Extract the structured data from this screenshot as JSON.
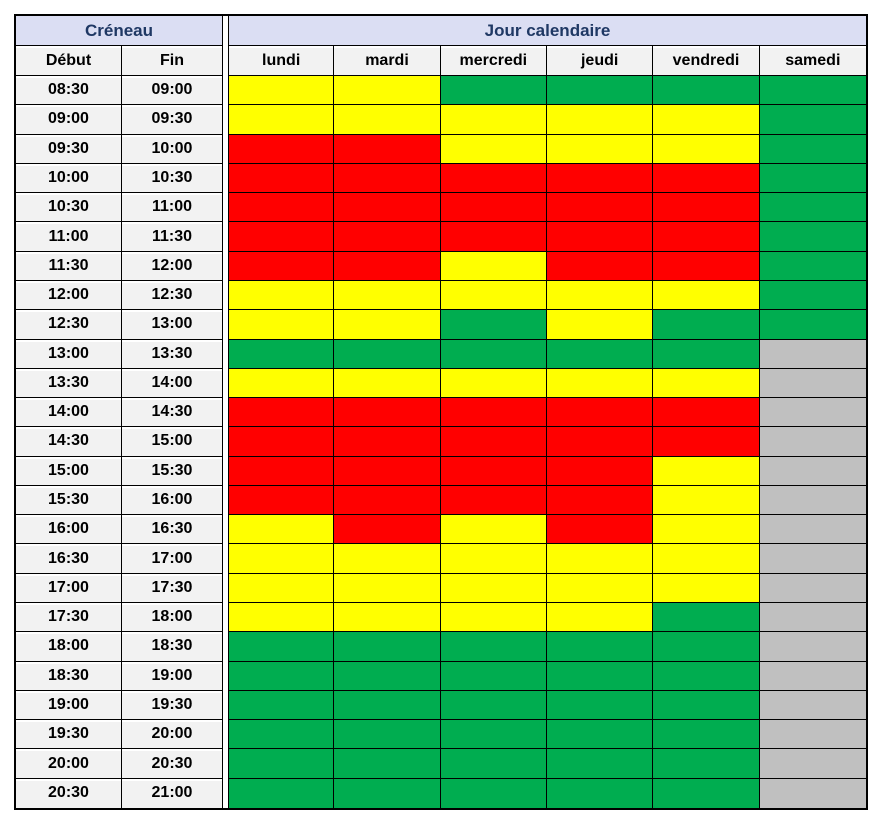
{
  "table": {
    "creneau_label": "Créneau",
    "jour_label": "Jour calendaire",
    "debut_label": "Début",
    "fin_label": "Fin"
  },
  "colors": {
    "green": "#00AD50",
    "yellow": "#FFFF00",
    "red": "#FF0000",
    "gray": "#C0C0C0",
    "header_bg": "#DBDEF3",
    "header_text": "#1F3864",
    "light_bg": "#F2F2F2",
    "border": "#000000"
  },
  "chart_data": {
    "type": "heatmap",
    "title": "",
    "x_categories": [
      "lundi",
      "mardi",
      "mercredi",
      "jeudi",
      "vendredi",
      "samedi"
    ],
    "y_axis_columns": [
      "Début",
      "Fin"
    ],
    "cell_states": [
      "green",
      "yellow",
      "red",
      "gray"
    ],
    "rows": [
      {
        "debut": "08:30",
        "fin": "09:00",
        "cells": [
          "yellow",
          "yellow",
          "green",
          "green",
          "green",
          "green"
        ]
      },
      {
        "debut": "09:00",
        "fin": "09:30",
        "cells": [
          "yellow",
          "yellow",
          "yellow",
          "yellow",
          "yellow",
          "green"
        ]
      },
      {
        "debut": "09:30",
        "fin": "10:00",
        "cells": [
          "red",
          "red",
          "yellow",
          "yellow",
          "yellow",
          "green"
        ]
      },
      {
        "debut": "10:00",
        "fin": "10:30",
        "cells": [
          "red",
          "red",
          "red",
          "red",
          "red",
          "green"
        ]
      },
      {
        "debut": "10:30",
        "fin": "11:00",
        "cells": [
          "red",
          "red",
          "red",
          "red",
          "red",
          "green"
        ]
      },
      {
        "debut": "11:00",
        "fin": "11:30",
        "cells": [
          "red",
          "red",
          "red",
          "red",
          "red",
          "green"
        ]
      },
      {
        "debut": "11:30",
        "fin": "12:00",
        "cells": [
          "red",
          "red",
          "yellow",
          "red",
          "red",
          "green"
        ]
      },
      {
        "debut": "12:00",
        "fin": "12:30",
        "cells": [
          "yellow",
          "yellow",
          "yellow",
          "yellow",
          "yellow",
          "green"
        ]
      },
      {
        "debut": "12:30",
        "fin": "13:00",
        "cells": [
          "yellow",
          "yellow",
          "green",
          "yellow",
          "green",
          "green"
        ]
      },
      {
        "debut": "13:00",
        "fin": "13:30",
        "cells": [
          "green",
          "green",
          "green",
          "green",
          "green",
          "gray"
        ]
      },
      {
        "debut": "13:30",
        "fin": "14:00",
        "cells": [
          "yellow",
          "yellow",
          "yellow",
          "yellow",
          "yellow",
          "gray"
        ]
      },
      {
        "debut": "14:00",
        "fin": "14:30",
        "cells": [
          "red",
          "red",
          "red",
          "red",
          "red",
          "gray"
        ]
      },
      {
        "debut": "14:30",
        "fin": "15:00",
        "cells": [
          "red",
          "red",
          "red",
          "red",
          "red",
          "gray"
        ]
      },
      {
        "debut": "15:00",
        "fin": "15:30",
        "cells": [
          "red",
          "red",
          "red",
          "red",
          "yellow",
          "gray"
        ]
      },
      {
        "debut": "15:30",
        "fin": "16:00",
        "cells": [
          "red",
          "red",
          "red",
          "red",
          "yellow",
          "gray"
        ]
      },
      {
        "debut": "16:00",
        "fin": "16:30",
        "cells": [
          "yellow",
          "red",
          "yellow",
          "red",
          "yellow",
          "gray"
        ]
      },
      {
        "debut": "16:30",
        "fin": "17:00",
        "cells": [
          "yellow",
          "yellow",
          "yellow",
          "yellow",
          "yellow",
          "gray"
        ]
      },
      {
        "debut": "17:00",
        "fin": "17:30",
        "cells": [
          "yellow",
          "yellow",
          "yellow",
          "yellow",
          "yellow",
          "gray"
        ]
      },
      {
        "debut": "17:30",
        "fin": "18:00",
        "cells": [
          "yellow",
          "yellow",
          "yellow",
          "yellow",
          "green",
          "gray"
        ]
      },
      {
        "debut": "18:00",
        "fin": "18:30",
        "cells": [
          "green",
          "green",
          "green",
          "green",
          "green",
          "gray"
        ]
      },
      {
        "debut": "18:30",
        "fin": "19:00",
        "cells": [
          "green",
          "green",
          "green",
          "green",
          "green",
          "gray"
        ]
      },
      {
        "debut": "19:00",
        "fin": "19:30",
        "cells": [
          "green",
          "green",
          "green",
          "green",
          "green",
          "gray"
        ]
      },
      {
        "debut": "19:30",
        "fin": "20:00",
        "cells": [
          "green",
          "green",
          "green",
          "green",
          "green",
          "gray"
        ]
      },
      {
        "debut": "20:00",
        "fin": "20:30",
        "cells": [
          "green",
          "green",
          "green",
          "green",
          "green",
          "gray"
        ]
      },
      {
        "debut": "20:30",
        "fin": "21:00",
        "cells": [
          "green",
          "green",
          "green",
          "green",
          "green",
          "gray"
        ]
      }
    ]
  }
}
